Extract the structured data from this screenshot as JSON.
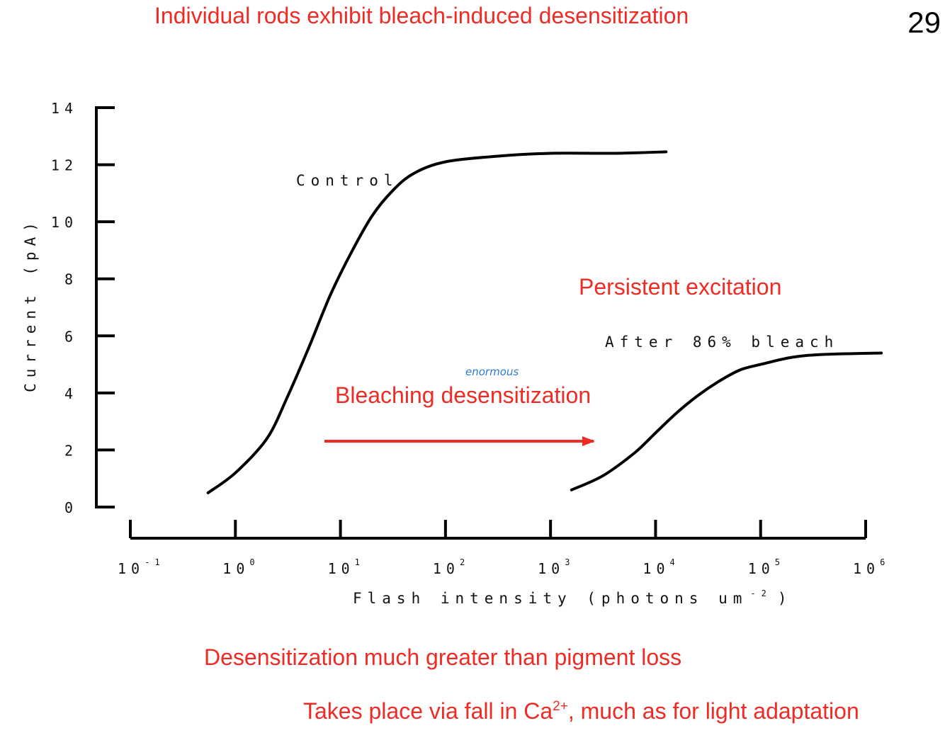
{
  "slide": {
    "title": "Individual rods exhibit bleach-induced desensitization",
    "number": "29",
    "bottom_line_1": "Desensitization much greater than pigment loss",
    "bottom_line_2_before": "Takes place via fall in Ca",
    "bottom_line_2_sup": "2+",
    "bottom_line_2_after": ", much as for light adaptation"
  },
  "colors": {
    "red_text": "#ee2b24",
    "curve": "#000000",
    "handwritten": "#2a7bd4"
  },
  "chart_data": {
    "type": "line",
    "xscale": "log10",
    "xlabel": "Flash intensity (photons um",
    "xlabel_exp": "-2",
    "xlabel_close": ")",
    "ylabel": "Current (pA)",
    "xlim_exp": [
      -1,
      6
    ],
    "ylim": [
      0,
      14
    ],
    "yticks": [
      0,
      2,
      4,
      6,
      8,
      10,
      12,
      14
    ],
    "xticks": [
      {
        "base": "10",
        "exp": "-1",
        "e": -1
      },
      {
        "base": "10",
        "exp": "0",
        "e": 0
      },
      {
        "base": "10",
        "exp": "1",
        "e": 1
      },
      {
        "base": "10",
        "exp": "2",
        "e": 2
      },
      {
        "base": "10",
        "exp": "3",
        "e": 3
      },
      {
        "base": "10",
        "exp": "4",
        "e": 4
      },
      {
        "base": "10",
        "exp": "5",
        "e": 5
      },
      {
        "base": "10",
        "exp": "6",
        "e": 6
      }
    ],
    "series": [
      {
        "name": "Control",
        "points": [
          [
            -0.26,
            0.5
          ],
          [
            0.0,
            1.2
          ],
          [
            0.3,
            2.4
          ],
          [
            0.5,
            3.9
          ],
          [
            0.7,
            5.6
          ],
          [
            0.9,
            7.4
          ],
          [
            1.1,
            8.9
          ],
          [
            1.3,
            10.2
          ],
          [
            1.5,
            11.1
          ],
          [
            1.7,
            11.7
          ],
          [
            2.0,
            12.1
          ],
          [
            2.5,
            12.3
          ],
          [
            3.0,
            12.4
          ],
          [
            3.6,
            12.4
          ],
          [
            4.1,
            12.45
          ]
        ]
      },
      {
        "name": "After 86% bleach",
        "points": [
          [
            3.2,
            0.6
          ],
          [
            3.5,
            1.1
          ],
          [
            3.8,
            1.9
          ],
          [
            4.0,
            2.6
          ],
          [
            4.2,
            3.3
          ],
          [
            4.4,
            3.9
          ],
          [
            4.6,
            4.4
          ],
          [
            4.8,
            4.8
          ],
          [
            5.0,
            5.0
          ],
          [
            5.3,
            5.25
          ],
          [
            5.6,
            5.35
          ],
          [
            6.15,
            5.4
          ]
        ]
      }
    ],
    "annotations": {
      "persistent": "Persistent excitation",
      "bleaching": "Bleaching desensitization",
      "handwritten": "enormous"
    }
  }
}
